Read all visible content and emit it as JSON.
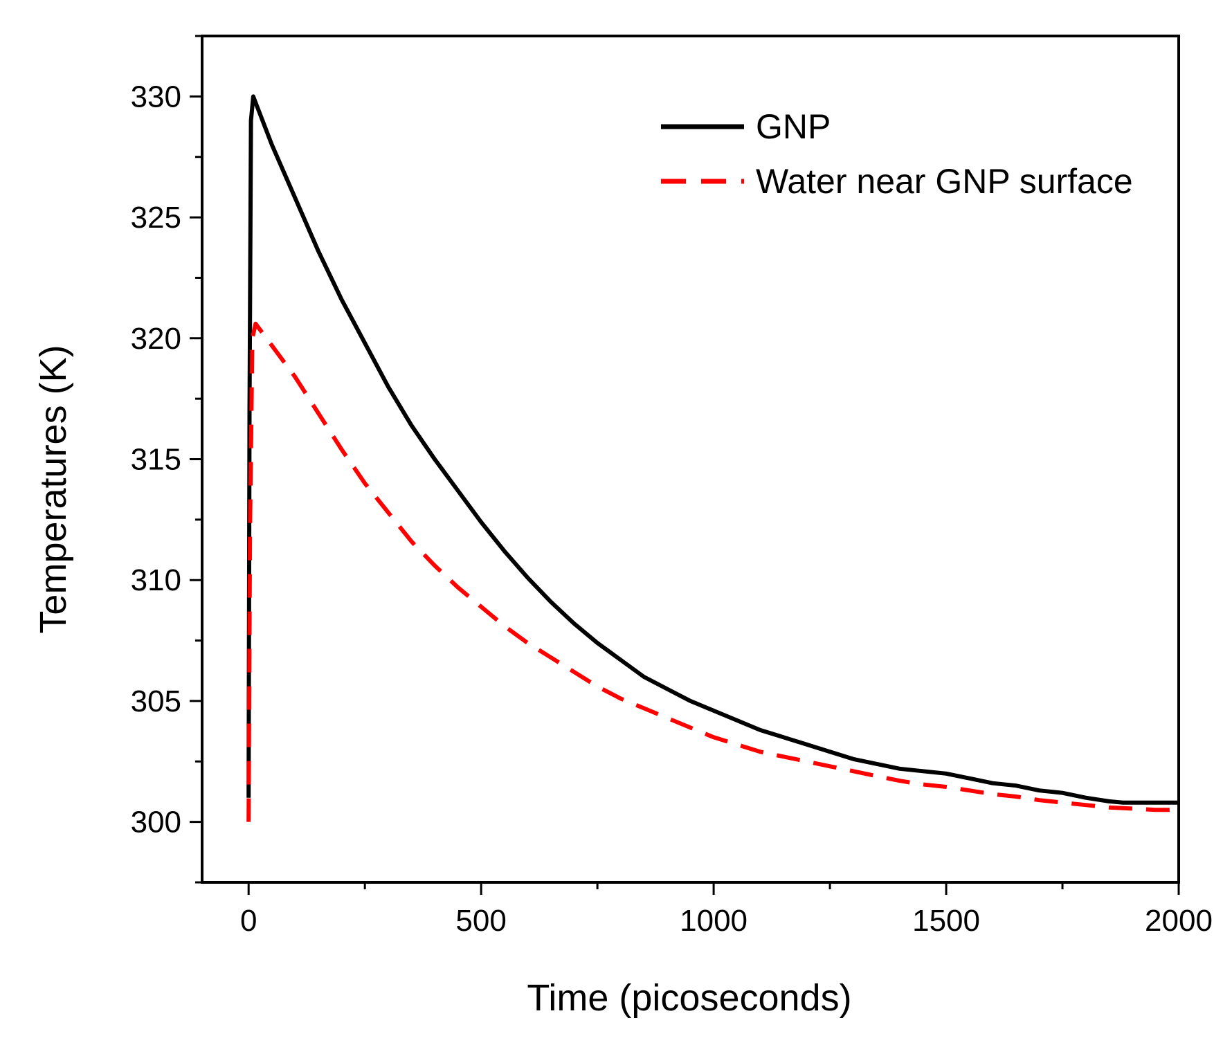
{
  "chart_data": {
    "type": "line",
    "title": "",
    "xlabel": "Time (picoseconds)",
    "ylabel": "Temperatures (K)",
    "xlim": [
      -100,
      2000
    ],
    "ylim": [
      297.5,
      332.5
    ],
    "x_ticks": [
      0,
      500,
      1000,
      1500,
      2000
    ],
    "x_minor_ticks": [
      250,
      750,
      1250,
      1750
    ],
    "y_ticks": [
      300,
      305,
      310,
      315,
      320,
      325,
      330
    ],
    "y_minor_ticks": [
      297.5,
      302.5,
      307.5,
      312.5,
      317.5,
      322.5,
      327.5,
      332.5
    ],
    "legend_position": "top-right",
    "series": [
      {
        "name": "GNP",
        "color": "#000000",
        "style": "solid",
        "x": [
          0,
          2,
          5,
          10,
          50,
          100,
          150,
          200,
          250,
          300,
          350,
          400,
          450,
          500,
          550,
          600,
          650,
          700,
          750,
          800,
          850,
          900,
          950,
          1000,
          1050,
          1100,
          1150,
          1200,
          1250,
          1300,
          1350,
          1400,
          1450,
          1500,
          1550,
          1600,
          1650,
          1700,
          1750,
          1800,
          1850,
          1880,
          1900,
          1950,
          2000
        ],
        "y": [
          301,
          317,
          329,
          330,
          328,
          325.8,
          323.6,
          321.6,
          319.8,
          318.0,
          316.4,
          315.0,
          313.7,
          312.4,
          311.2,
          310.1,
          309.1,
          308.2,
          307.4,
          306.7,
          306.0,
          305.5,
          305.0,
          304.6,
          304.2,
          303.8,
          303.5,
          303.2,
          302.9,
          302.6,
          302.4,
          302.2,
          302.1,
          302.0,
          301.8,
          301.6,
          301.5,
          301.3,
          301.2,
          301.0,
          300.85,
          300.8,
          300.8,
          300.8,
          300.8
        ]
      },
      {
        "name": "Water near GNP surface",
        "color": "#ff0000",
        "style": "dashed",
        "x": [
          0,
          3,
          8,
          15,
          50,
          100,
          150,
          200,
          250,
          300,
          350,
          400,
          450,
          500,
          550,
          600,
          650,
          700,
          750,
          800,
          850,
          900,
          950,
          1000,
          1050,
          1100,
          1150,
          1200,
          1250,
          1300,
          1350,
          1400,
          1450,
          1500,
          1550,
          1600,
          1650,
          1700,
          1750,
          1800,
          1850,
          1900,
          1950,
          2000
        ],
        "y": [
          300,
          312,
          320,
          320.6,
          319.7,
          318.4,
          316.9,
          315.4,
          314.0,
          312.8,
          311.6,
          310.6,
          309.7,
          308.9,
          308.1,
          307.4,
          306.8,
          306.2,
          305.6,
          305.1,
          304.7,
          304.3,
          303.9,
          303.5,
          303.2,
          302.9,
          302.7,
          302.5,
          302.3,
          302.1,
          301.9,
          301.7,
          301.55,
          301.45,
          301.3,
          301.15,
          301.05,
          300.9,
          300.8,
          300.7,
          300.6,
          300.55,
          300.5,
          300.5
        ]
      }
    ]
  }
}
